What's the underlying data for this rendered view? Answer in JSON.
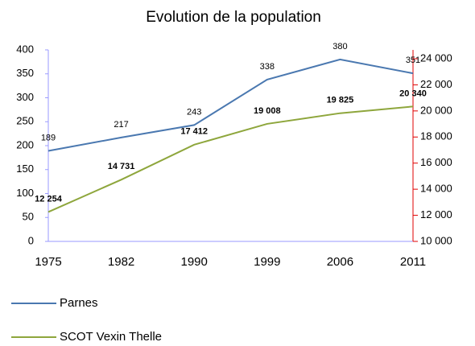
{
  "chart_data": {
    "type": "line",
    "title": "Evolution de la population",
    "categories": [
      "1975",
      "1982",
      "1990",
      "1999",
      "2006",
      "2011"
    ],
    "series": [
      {
        "name": "Parnes",
        "color": "#4a78b0",
        "values": [
          189,
          217,
          243,
          338,
          380,
          351
        ]
      },
      {
        "name": "SCOT Vexin Thelle",
        "color": "#8ea63c",
        "axis": "y2",
        "values": [
          12254,
          14731,
          17412,
          19008,
          19825,
          20340
        ],
        "value_labels": [
          "12 254",
          "14 731",
          "17 412",
          "19 008",
          "19 825",
          "20 340"
        ]
      }
    ],
    "ylim": [
      0,
      400
    ],
    "yticks": [
      0,
      50,
      100,
      150,
      200,
      250,
      300,
      350,
      400
    ],
    "y2lim": [
      10000,
      24000
    ],
    "y2ticks": [
      {
        "value": 10000,
        "label": "10 000"
      },
      {
        "value": 12000,
        "label": "12 000"
      },
      {
        "value": 14000,
        "label": "14 000"
      },
      {
        "value": 16000,
        "label": "16 000"
      },
      {
        "value": 18000,
        "label": "18 000"
      },
      {
        "value": 20000,
        "label": "20 000"
      },
      {
        "value": 22000,
        "label": "22 000"
      },
      {
        "value": 24000,
        "label": "24 000"
      }
    ],
    "legend": "bottom-left"
  }
}
